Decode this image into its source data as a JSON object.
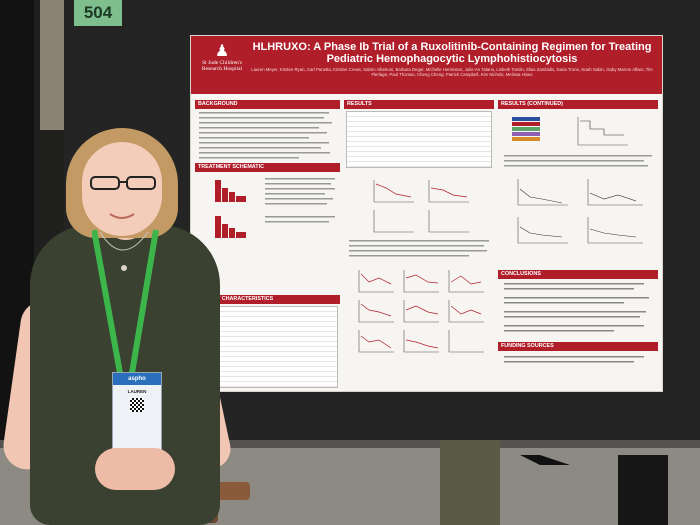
{
  "board_number": "504",
  "poster": {
    "title_line1": "HLHRUXO: A Phase Ib Trial of a Ruxolitinib-Containing Regimen for Treating",
    "title_line2": "Pediatric Hemophagocytic Lymphohistiocytosis",
    "logo_text": "St Jude Children's Research Hospital",
    "authors": "Lauren Meyer, Kristen Ryan, Carl Panetta, Kristine Crews, Sabrin Albeituni, Barbara Degar, Michelle Hermiston, Julie-An Talano, Lisbeth Tomlin, Elias Zambidis, Daria Trone, Noah Sabin, Gaby Marron Alfaro, Tim Flerlage, Paul Thomas, Cheng Cheng, Patrick Campbell, Kim Nichols, Melissa Hines",
    "sections": {
      "background": "BACKGROUND",
      "treatment": "TREATMENT SCHEMATIC",
      "patient": "PATIENT CHARACTERISTICS",
      "results": "RESULTS",
      "results_cont": "RESULTS (CONTINUED)",
      "conclusions": "CONCLUSIONS",
      "funding": "FUNDING SOURCES"
    }
  },
  "badge": {
    "org": "aspho",
    "name": "LAUREN"
  },
  "colors": {
    "poster_red": "#b01e2a",
    "board_green": "#7fbf8e",
    "lanyard_green": "#3cb54a"
  }
}
